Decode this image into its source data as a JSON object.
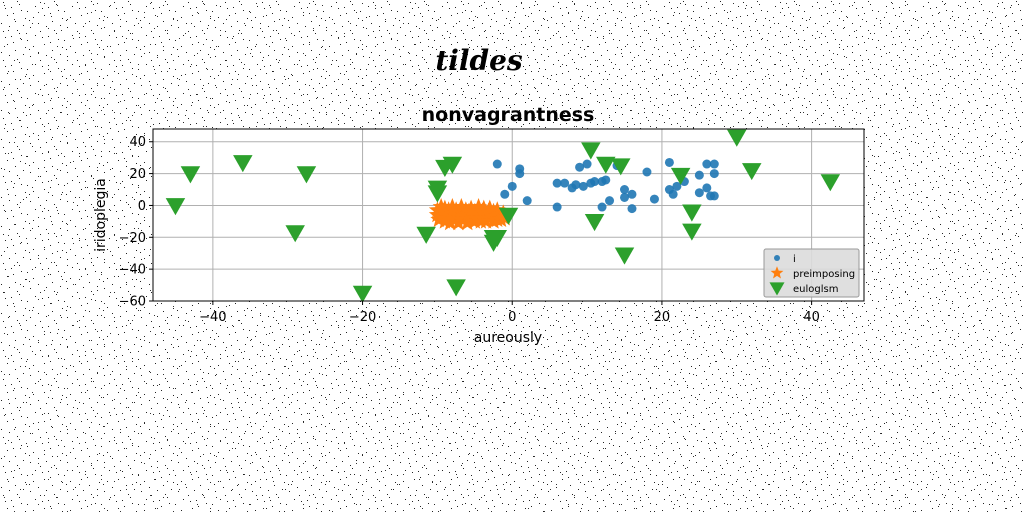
{
  "figure": {
    "suptitle": "tildes"
  },
  "chart_data": {
    "type": "scatter",
    "title": "nonvagrantness",
    "xlabel": "aureously",
    "ylabel": "iridoplegia",
    "xlim": [
      -48,
      47
    ],
    "ylim": [
      -60,
      48
    ],
    "xticks": [
      -40,
      -20,
      0,
      20,
      40
    ],
    "yticks": [
      -60,
      -40,
      -20,
      0,
      20,
      40
    ],
    "grid": true,
    "legend_position": "lower-right",
    "series": [
      {
        "name": "i",
        "marker": "circle",
        "color": "#1f77b4",
        "points": [
          [
            -2.0,
            26.0
          ],
          [
            -1.0,
            7.0
          ],
          [
            0.0,
            12.0
          ],
          [
            1.0,
            23.0
          ],
          [
            1.0,
            20.0
          ],
          [
            2.0,
            3.0
          ],
          [
            6.0,
            -1.0
          ],
          [
            6.0,
            14.0
          ],
          [
            7.0,
            14.0
          ],
          [
            8.0,
            11.0
          ],
          [
            8.5,
            13.0
          ],
          [
            9.0,
            24.0
          ],
          [
            9.5,
            12.0
          ],
          [
            10.0,
            26.0
          ],
          [
            10.5,
            14.0
          ],
          [
            11.0,
            15.0
          ],
          [
            12.0,
            15.0
          ],
          [
            12.0,
            -1.0
          ],
          [
            12.5,
            16.0
          ],
          [
            13.0,
            3.0
          ],
          [
            14.0,
            25.0
          ],
          [
            15.0,
            10.0
          ],
          [
            15.0,
            5.0
          ],
          [
            16.0,
            7.0
          ],
          [
            16.0,
            -2.0
          ],
          [
            18.0,
            21.0
          ],
          [
            19.0,
            4.0
          ],
          [
            21.0,
            27.0
          ],
          [
            21.0,
            10.0
          ],
          [
            21.5,
            7.0
          ],
          [
            22.0,
            12.0
          ],
          [
            23.0,
            15.0
          ],
          [
            25.0,
            19.0
          ],
          [
            25.0,
            8.0
          ],
          [
            26.0,
            26.0
          ],
          [
            26.0,
            11.0
          ],
          [
            26.5,
            6.0
          ],
          [
            27.0,
            26.0
          ],
          [
            27.0,
            20.0
          ],
          [
            27.0,
            6.0
          ]
        ]
      },
      {
        "name": "preimposing",
        "marker": "star",
        "color": "#ff7f0e",
        "points": [
          [
            -10.0,
            -6.0
          ],
          [
            -10.0,
            -3.0
          ],
          [
            -9.8,
            -9.0
          ],
          [
            -9.5,
            -1.0
          ],
          [
            -9.5,
            -7.0
          ],
          [
            -9.2,
            -4.0
          ],
          [
            -9.0,
            -10.0
          ],
          [
            -9.0,
            -2.0
          ],
          [
            -8.8,
            -6.0
          ],
          [
            -8.5,
            -8.0
          ],
          [
            -8.5,
            -3.0
          ],
          [
            -8.3,
            -11.0
          ],
          [
            -8.0,
            -5.0
          ],
          [
            -8.0,
            -1.0
          ],
          [
            -7.8,
            -9.0
          ],
          [
            -7.5,
            -6.0
          ],
          [
            -7.5,
            -3.0
          ],
          [
            -7.2,
            -11.0
          ],
          [
            -7.0,
            -8.0
          ],
          [
            -7.0,
            -4.0
          ],
          [
            -6.8,
            -1.0
          ],
          [
            -6.5,
            -9.0
          ],
          [
            -6.5,
            -6.0
          ],
          [
            -6.2,
            -3.0
          ],
          [
            -6.0,
            -11.0
          ],
          [
            -6.0,
            -7.0
          ],
          [
            -5.8,
            -4.0
          ],
          [
            -5.5,
            -9.0
          ],
          [
            -5.5,
            -2.0
          ],
          [
            -5.2,
            -6.0
          ],
          [
            -5.0,
            -10.0
          ],
          [
            -5.0,
            -4.0
          ],
          [
            -4.8,
            -8.0
          ],
          [
            -4.5,
            -1.0
          ],
          [
            -4.5,
            -6.0
          ],
          [
            -4.2,
            -10.0
          ],
          [
            -4.0,
            -4.0
          ],
          [
            -4.0,
            -8.0
          ],
          [
            -3.8,
            -2.0
          ],
          [
            -3.5,
            -6.0
          ],
          [
            -3.5,
            -10.0
          ],
          [
            -3.2,
            -4.0
          ],
          [
            -3.0,
            -8.0
          ],
          [
            -3.0,
            -2.0
          ],
          [
            -2.8,
            -6.0
          ],
          [
            -2.5,
            -10.0
          ],
          [
            -2.5,
            -4.0
          ],
          [
            -2.2,
            -7.0
          ],
          [
            -2.0,
            -9.0
          ],
          [
            -2.0,
            -3.0
          ],
          [
            -1.8,
            -6.0
          ],
          [
            -1.5,
            -9.0
          ],
          [
            -1.2,
            -5.0
          ],
          [
            -1.0,
            -8.0
          ]
        ]
      },
      {
        "name": "euloglsm",
        "marker": "triangle-down",
        "color": "#2ca02c",
        "points": [
          [
            -45.0,
            0.0
          ],
          [
            -43.0,
            20.0
          ],
          [
            -36.0,
            27.0
          ],
          [
            -29.0,
            -17.0
          ],
          [
            -27.5,
            20.0
          ],
          [
            -20.0,
            -55.0
          ],
          [
            -11.5,
            -18.0
          ],
          [
            -10.0,
            11.0
          ],
          [
            -10.0,
            8.0
          ],
          [
            -9.0,
            24.0
          ],
          [
            -8.0,
            26.0
          ],
          [
            -7.5,
            -51.0
          ],
          [
            -2.5,
            -20.0
          ],
          [
            -2.5,
            -23.0
          ],
          [
            -2.0,
            -20.0
          ],
          [
            -0.5,
            -6.0
          ],
          [
            10.5,
            35.0
          ],
          [
            11.0,
            -10.0
          ],
          [
            12.5,
            26.0
          ],
          [
            14.5,
            25.0
          ],
          [
            15.0,
            -31.0
          ],
          [
            22.5,
            19.0
          ],
          [
            24.0,
            -4.0
          ],
          [
            24.0,
            -16.0
          ],
          [
            30.0,
            43.0
          ],
          [
            32.0,
            22.0
          ],
          [
            42.5,
            15.0
          ]
        ]
      }
    ]
  }
}
